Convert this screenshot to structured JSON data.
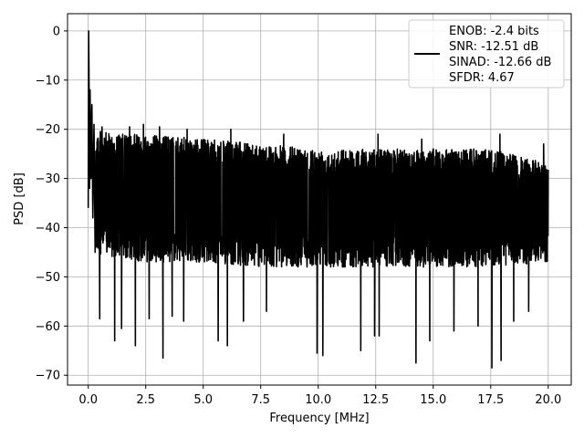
{
  "chart_data": {
    "type": "line",
    "title": "",
    "xlabel": "Frequency [MHz]",
    "ylabel": "PSD [dB]",
    "xlim": [
      -0.9,
      21.0
    ],
    "ylim": [
      -72.0,
      3.5
    ],
    "xticks": [
      0.0,
      2.5,
      5.0,
      7.5,
      10.0,
      12.5,
      15.0,
      17.5,
      20.0
    ],
    "xtick_labels": [
      "0.0",
      "2.5",
      "5.0",
      "7.5",
      "10.0",
      "12.5",
      "15.0",
      "17.5",
      "20.0"
    ],
    "yticks": [
      0,
      -10,
      -20,
      -30,
      -40,
      -50,
      -60,
      -70
    ],
    "ytick_labels": [
      "0",
      "−10",
      "−20",
      "−30",
      "−40",
      "−50",
      "−60",
      "−70"
    ],
    "grid": true,
    "legend_position": "top-right",
    "series": [
      {
        "legend_lines": [
          "ENOB: -2.4 bits",
          "SNR: -12.51 dB",
          "SINAD: -12.66 dB",
          "SFDR: 4.67"
        ],
        "color": "#000000",
        "start_points": [
          [
            0.0,
            -36
          ],
          [
            0.02,
            0.0
          ],
          [
            0.04,
            -14
          ],
          [
            0.06,
            -32
          ],
          [
            0.08,
            -12
          ],
          [
            0.12,
            -30
          ],
          [
            0.16,
            -15
          ],
          [
            0.2,
            -38
          ],
          [
            0.25,
            -19
          ],
          [
            0.3,
            -45
          ]
        ],
        "envelope": [
          {
            "x": 0.3,
            "upper": -20,
            "lower": -45
          },
          {
            "x": 1.0,
            "upper": -21,
            "lower": -46
          },
          {
            "x": 2.5,
            "upper": -21,
            "lower": -47
          },
          {
            "x": 5.0,
            "upper": -22,
            "lower": -47
          },
          {
            "x": 7.5,
            "upper": -23,
            "lower": -48
          },
          {
            "x": 10.0,
            "upper": -24,
            "lower": -48
          },
          {
            "x": 12.5,
            "upper": -24,
            "lower": -48
          },
          {
            "x": 15.0,
            "upper": -24,
            "lower": -48
          },
          {
            "x": 17.5,
            "upper": -24,
            "lower": -48
          },
          {
            "x": 20.0,
            "upper": -27,
            "lower": -47
          }
        ],
        "deep_dips": [
          [
            0.5,
            -58.5
          ],
          [
            1.15,
            -63
          ],
          [
            1.45,
            -60.5
          ],
          [
            2.05,
            -64
          ],
          [
            2.65,
            -58.5
          ],
          [
            3.25,
            -66.5
          ],
          [
            3.65,
            -58
          ],
          [
            4.15,
            -59
          ],
          [
            5.65,
            -63
          ],
          [
            6.05,
            -64
          ],
          [
            6.75,
            -59
          ],
          [
            7.75,
            -57
          ],
          [
            9.95,
            -65.5
          ],
          [
            10.2,
            -66
          ],
          [
            11.85,
            -65
          ],
          [
            12.45,
            -62
          ],
          [
            12.65,
            -62
          ],
          [
            14.25,
            -67.5
          ],
          [
            14.85,
            -63
          ],
          [
            15.9,
            -61
          ],
          [
            16.95,
            -60
          ],
          [
            17.55,
            -68.5
          ],
          [
            17.95,
            -67
          ],
          [
            18.5,
            -59
          ],
          [
            19.15,
            -57
          ]
        ],
        "peaks": [
          [
            0.6,
            -19.5
          ],
          [
            1.8,
            -19.5
          ],
          [
            2.4,
            -19
          ],
          [
            3.1,
            -19.5
          ],
          [
            4.3,
            -20
          ],
          [
            6.2,
            -20
          ],
          [
            8.5,
            -21
          ],
          [
            12.6,
            -21
          ],
          [
            14.5,
            -22
          ],
          [
            17.9,
            -21
          ],
          [
            19.8,
            -23
          ]
        ]
      }
    ]
  }
}
